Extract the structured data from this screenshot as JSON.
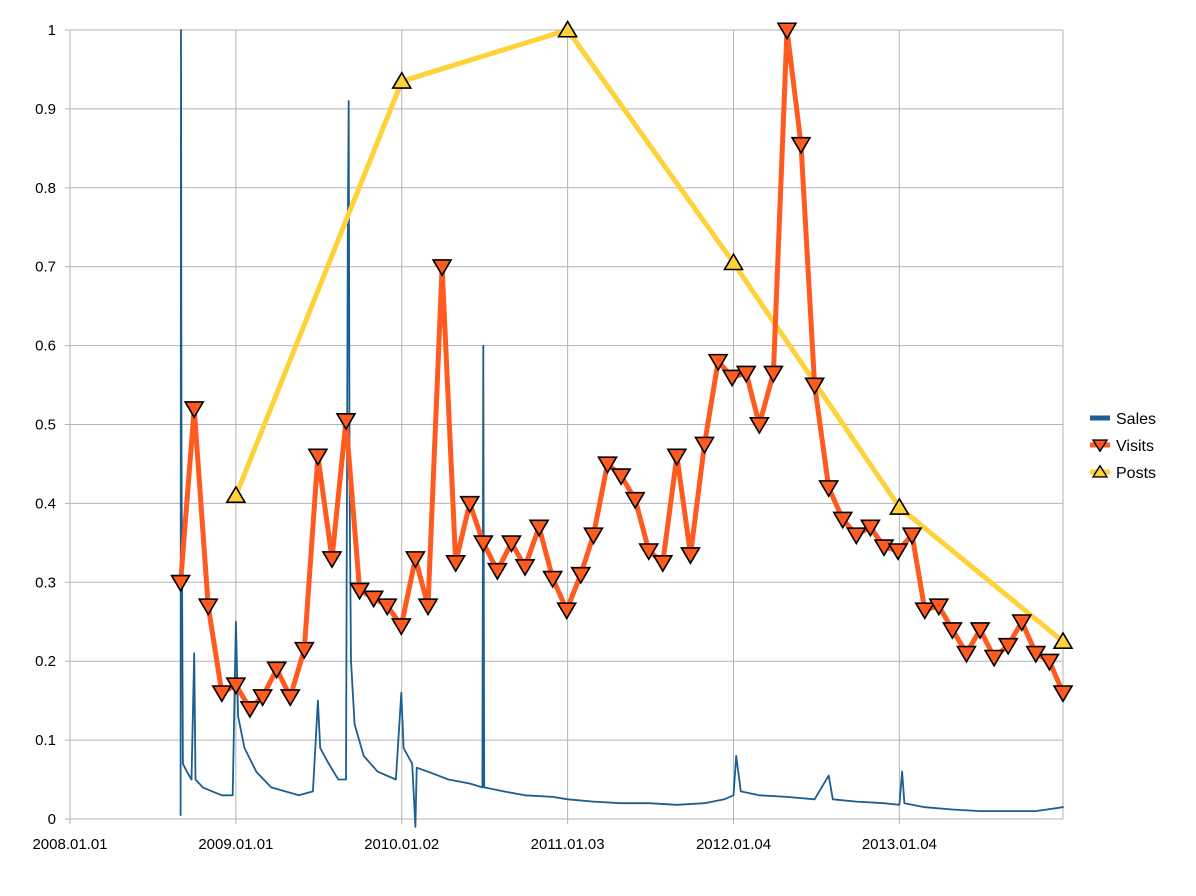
{
  "chart_data": {
    "type": "line",
    "title": "",
    "xlabel": "",
    "ylabel": "",
    "x_tick_labels": [
      "2008.01.01",
      "2009.01.01",
      "2010.01.02",
      "2011.01.03",
      "2012.01.04",
      "2013.01.04"
    ],
    "x_tick_dates": [
      "2008-01-01",
      "2009-01-01",
      "2010-01-02",
      "2011-01-03",
      "2012-01-04",
      "2013-01-04"
    ],
    "xlim": [
      "2008-01-01",
      "2013-12-31"
    ],
    "ylim": [
      0,
      1
    ],
    "y_ticks": [
      "0",
      "0.1",
      "0.2",
      "0.3",
      "0.4",
      "0.5",
      "0.6",
      "0.7",
      "0.8",
      "0.9",
      "1"
    ],
    "grid": true,
    "legend_position": "right",
    "series": [
      {
        "name": "Sales",
        "color": "#1b5e8f",
        "marker": "none",
        "points": [
          [
            "2008-09-01",
            0.005
          ],
          [
            "2008-09-02",
            1.0
          ],
          [
            "2008-09-03",
            0.47
          ],
          [
            "2008-09-06",
            0.07
          ],
          [
            "2008-09-15",
            0.06
          ],
          [
            "2008-09-25",
            0.05
          ],
          [
            "2008-10-01",
            0.21
          ],
          [
            "2008-10-04",
            0.05
          ],
          [
            "2008-10-20",
            0.04
          ],
          [
            "2008-11-10",
            0.035
          ],
          [
            "2008-12-01",
            0.03
          ],
          [
            "2008-12-25",
            0.03
          ],
          [
            "2009-01-01",
            0.25
          ],
          [
            "2009-01-06",
            0.13
          ],
          [
            "2009-01-20",
            0.09
          ],
          [
            "2009-02-15",
            0.06
          ],
          [
            "2009-03-20",
            0.04
          ],
          [
            "2009-04-20",
            0.035
          ],
          [
            "2009-05-20",
            0.03
          ],
          [
            "2009-06-20",
            0.035
          ],
          [
            "2009-07-01",
            0.15
          ],
          [
            "2009-07-06",
            0.09
          ],
          [
            "2009-07-25",
            0.07
          ],
          [
            "2009-08-15",
            0.05
          ],
          [
            "2009-09-01",
            0.05
          ],
          [
            "2009-09-05",
            0.74
          ],
          [
            "2009-09-07",
            0.91
          ],
          [
            "2009-09-09",
            0.42
          ],
          [
            "2009-09-12",
            0.2
          ],
          [
            "2009-09-20",
            0.12
          ],
          [
            "2009-10-10",
            0.08
          ],
          [
            "2009-11-10",
            0.06
          ],
          [
            "2009-12-20",
            0.05
          ],
          [
            "2010-01-01",
            0.16
          ],
          [
            "2010-01-06",
            0.09
          ],
          [
            "2010-01-25",
            0.07
          ],
          [
            "2010-02-01",
            -0.01
          ],
          [
            "2010-02-04",
            0.065
          ],
          [
            "2010-03-01",
            0.06
          ],
          [
            "2010-04-15",
            0.05
          ],
          [
            "2010-06-01",
            0.045
          ],
          [
            "2010-06-29",
            0.04
          ],
          [
            "2010-07-01",
            0.6
          ],
          [
            "2010-07-03",
            0.04
          ],
          [
            "2010-08-15",
            0.035
          ],
          [
            "2010-10-01",
            0.03
          ],
          [
            "2010-12-01",
            0.028
          ],
          [
            "2011-01-03",
            0.025
          ],
          [
            "2011-03-01",
            0.022
          ],
          [
            "2011-05-01",
            0.02
          ],
          [
            "2011-07-01",
            0.02
          ],
          [
            "2011-09-01",
            0.018
          ],
          [
            "2011-11-01",
            0.02
          ],
          [
            "2011-12-15",
            0.025
          ],
          [
            "2012-01-04",
            0.03
          ],
          [
            "2012-01-10",
            0.08
          ],
          [
            "2012-01-20",
            0.035
          ],
          [
            "2012-03-01",
            0.03
          ],
          [
            "2012-05-01",
            0.028
          ],
          [
            "2012-07-01",
            0.025
          ],
          [
            "2012-08-01",
            0.055
          ],
          [
            "2012-08-10",
            0.025
          ],
          [
            "2012-10-01",
            0.022
          ],
          [
            "2012-12-01",
            0.02
          ],
          [
            "2013-01-04",
            0.018
          ],
          [
            "2013-01-10",
            0.06
          ],
          [
            "2013-01-15",
            0.02
          ],
          [
            "2013-03-01",
            0.015
          ],
          [
            "2013-05-01",
            0.012
          ],
          [
            "2013-07-01",
            0.01
          ],
          [
            "2013-09-01",
            0.01
          ],
          [
            "2013-11-01",
            0.01
          ],
          [
            "2013-12-31",
            0.015
          ]
        ]
      },
      {
        "name": "Visits",
        "color": "#ff5a1f",
        "marker": "triangle-down",
        "points": [
          [
            "2008-09-01",
            0.3
          ],
          [
            "2008-10-01",
            0.52
          ],
          [
            "2008-11-01",
            0.27
          ],
          [
            "2008-12-01",
            0.16
          ],
          [
            "2009-01-01",
            0.17
          ],
          [
            "2009-02-01",
            0.14
          ],
          [
            "2009-03-01",
            0.155
          ],
          [
            "2009-04-01",
            0.19
          ],
          [
            "2009-05-01",
            0.155
          ],
          [
            "2009-06-01",
            0.215
          ],
          [
            "2009-07-01",
            0.46
          ],
          [
            "2009-08-01",
            0.33
          ],
          [
            "2009-09-01",
            0.505
          ],
          [
            "2009-10-01",
            0.29
          ],
          [
            "2009-11-01",
            0.28
          ],
          [
            "2009-12-01",
            0.27
          ],
          [
            "2010-01-01",
            0.245
          ],
          [
            "2010-02-01",
            0.33
          ],
          [
            "2010-03-01",
            0.27
          ],
          [
            "2010-04-01",
            0.7
          ],
          [
            "2010-05-01",
            0.325
          ],
          [
            "2010-06-01",
            0.4
          ],
          [
            "2010-07-01",
            0.35
          ],
          [
            "2010-08-01",
            0.315
          ],
          [
            "2010-09-01",
            0.35
          ],
          [
            "2010-10-01",
            0.32
          ],
          [
            "2010-11-01",
            0.37
          ],
          [
            "2010-12-01",
            0.305
          ],
          [
            "2011-01-01",
            0.265
          ],
          [
            "2011-02-01",
            0.31
          ],
          [
            "2011-03-01",
            0.36
          ],
          [
            "2011-04-01",
            0.45
          ],
          [
            "2011-05-01",
            0.435
          ],
          [
            "2011-06-01",
            0.405
          ],
          [
            "2011-07-01",
            0.34
          ],
          [
            "2011-08-01",
            0.325
          ],
          [
            "2011-09-01",
            0.46
          ],
          [
            "2011-10-01",
            0.335
          ],
          [
            "2011-11-01",
            0.475
          ],
          [
            "2011-12-01",
            0.58
          ],
          [
            "2012-01-01",
            0.56
          ],
          [
            "2012-02-01",
            0.565
          ],
          [
            "2012-03-01",
            0.5
          ],
          [
            "2012-04-01",
            0.565
          ],
          [
            "2012-05-01",
            1.0
          ],
          [
            "2012-06-01",
            0.855
          ],
          [
            "2012-07-01",
            0.55
          ],
          [
            "2012-08-01",
            0.42
          ],
          [
            "2012-09-01",
            0.38
          ],
          [
            "2012-10-01",
            0.36
          ],
          [
            "2012-11-01",
            0.37
          ],
          [
            "2012-12-01",
            0.345
          ],
          [
            "2013-01-01",
            0.34
          ],
          [
            "2013-02-01",
            0.36
          ],
          [
            "2013-03-01",
            0.265
          ],
          [
            "2013-04-01",
            0.27
          ],
          [
            "2013-05-01",
            0.24
          ],
          [
            "2013-06-01",
            0.21
          ],
          [
            "2013-07-01",
            0.24
          ],
          [
            "2013-08-01",
            0.205
          ],
          [
            "2013-09-01",
            0.22
          ],
          [
            "2013-10-01",
            0.25
          ],
          [
            "2013-11-01",
            0.21
          ],
          [
            "2013-12-01",
            0.2
          ],
          [
            "2013-12-31",
            0.16
          ]
        ]
      },
      {
        "name": "Posts",
        "color": "#ffd23a",
        "marker": "triangle-up",
        "points": [
          [
            "2009-01-01",
            0.41
          ],
          [
            "2010-01-02",
            0.935
          ],
          [
            "2011-01-03",
            1.0
          ],
          [
            "2012-01-04",
            0.705
          ],
          [
            "2013-01-04",
            0.395
          ],
          [
            "2013-12-31",
            0.225
          ]
        ]
      }
    ]
  }
}
